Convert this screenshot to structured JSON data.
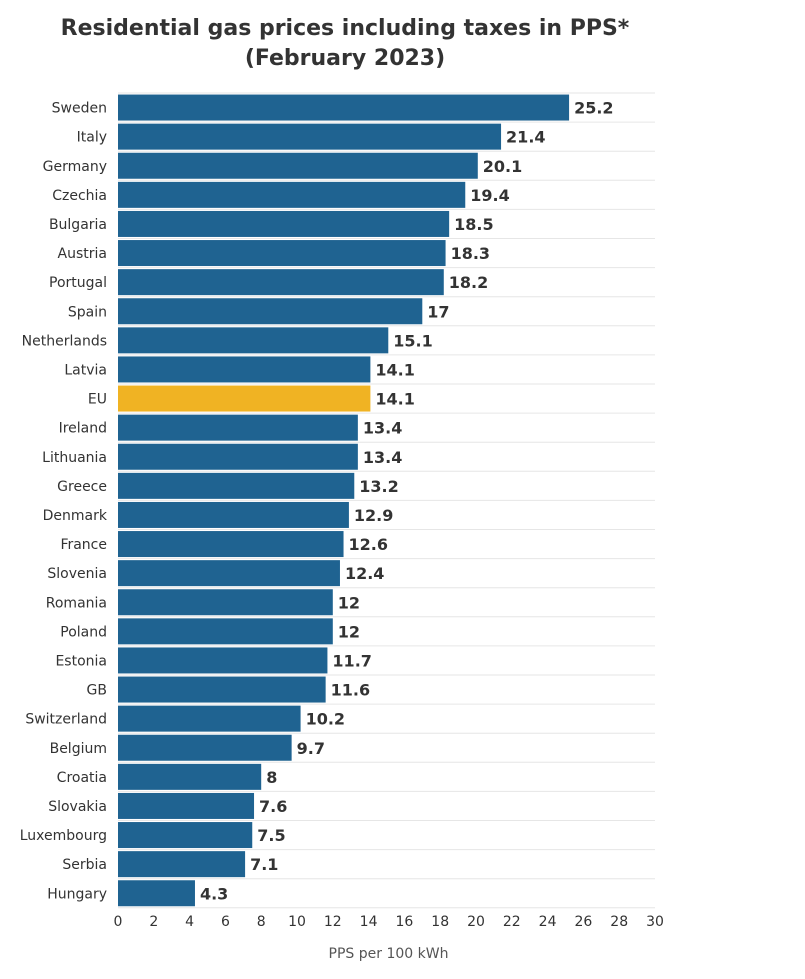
{
  "chart_data": {
    "type": "bar",
    "orientation": "horizontal",
    "title": "Residential gas prices including taxes in PPS* (February 2023)",
    "xlabel": "PPS per 100 kWh",
    "ylabel": "",
    "xlim": [
      0,
      30
    ],
    "ticks": [
      0,
      2,
      4,
      6,
      8,
      10,
      12,
      14,
      16,
      18,
      20,
      22,
      24,
      26,
      28,
      30
    ],
    "grid": true,
    "categories": [
      "Sweden",
      "Italy",
      "Germany",
      "Czechia",
      "Bulgaria",
      "Austria",
      "Portugal",
      "Spain",
      "Netherlands",
      "Latvia",
      "EU",
      "Ireland",
      "Lithuania",
      "Greece",
      "Denmark",
      "France",
      "Slovenia",
      "Romania",
      "Poland",
      "Estonia",
      "GB",
      "Switzerland",
      "Belgium",
      "Croatia",
      "Slovakia",
      "Luxembourg",
      "Serbia",
      "Hungary"
    ],
    "values": [
      25.2,
      21.4,
      20.1,
      19.4,
      18.5,
      18.3,
      18.2,
      17,
      15.1,
      14.1,
      14.1,
      13.4,
      13.4,
      13.2,
      12.9,
      12.6,
      12.4,
      12,
      12,
      11.7,
      11.6,
      10.2,
      9.7,
      8,
      7.6,
      7.5,
      7.1,
      4.3
    ],
    "highlight_category": "EU",
    "colors": {
      "bar": "#1f6391",
      "highlight": "#f0b323"
    }
  }
}
